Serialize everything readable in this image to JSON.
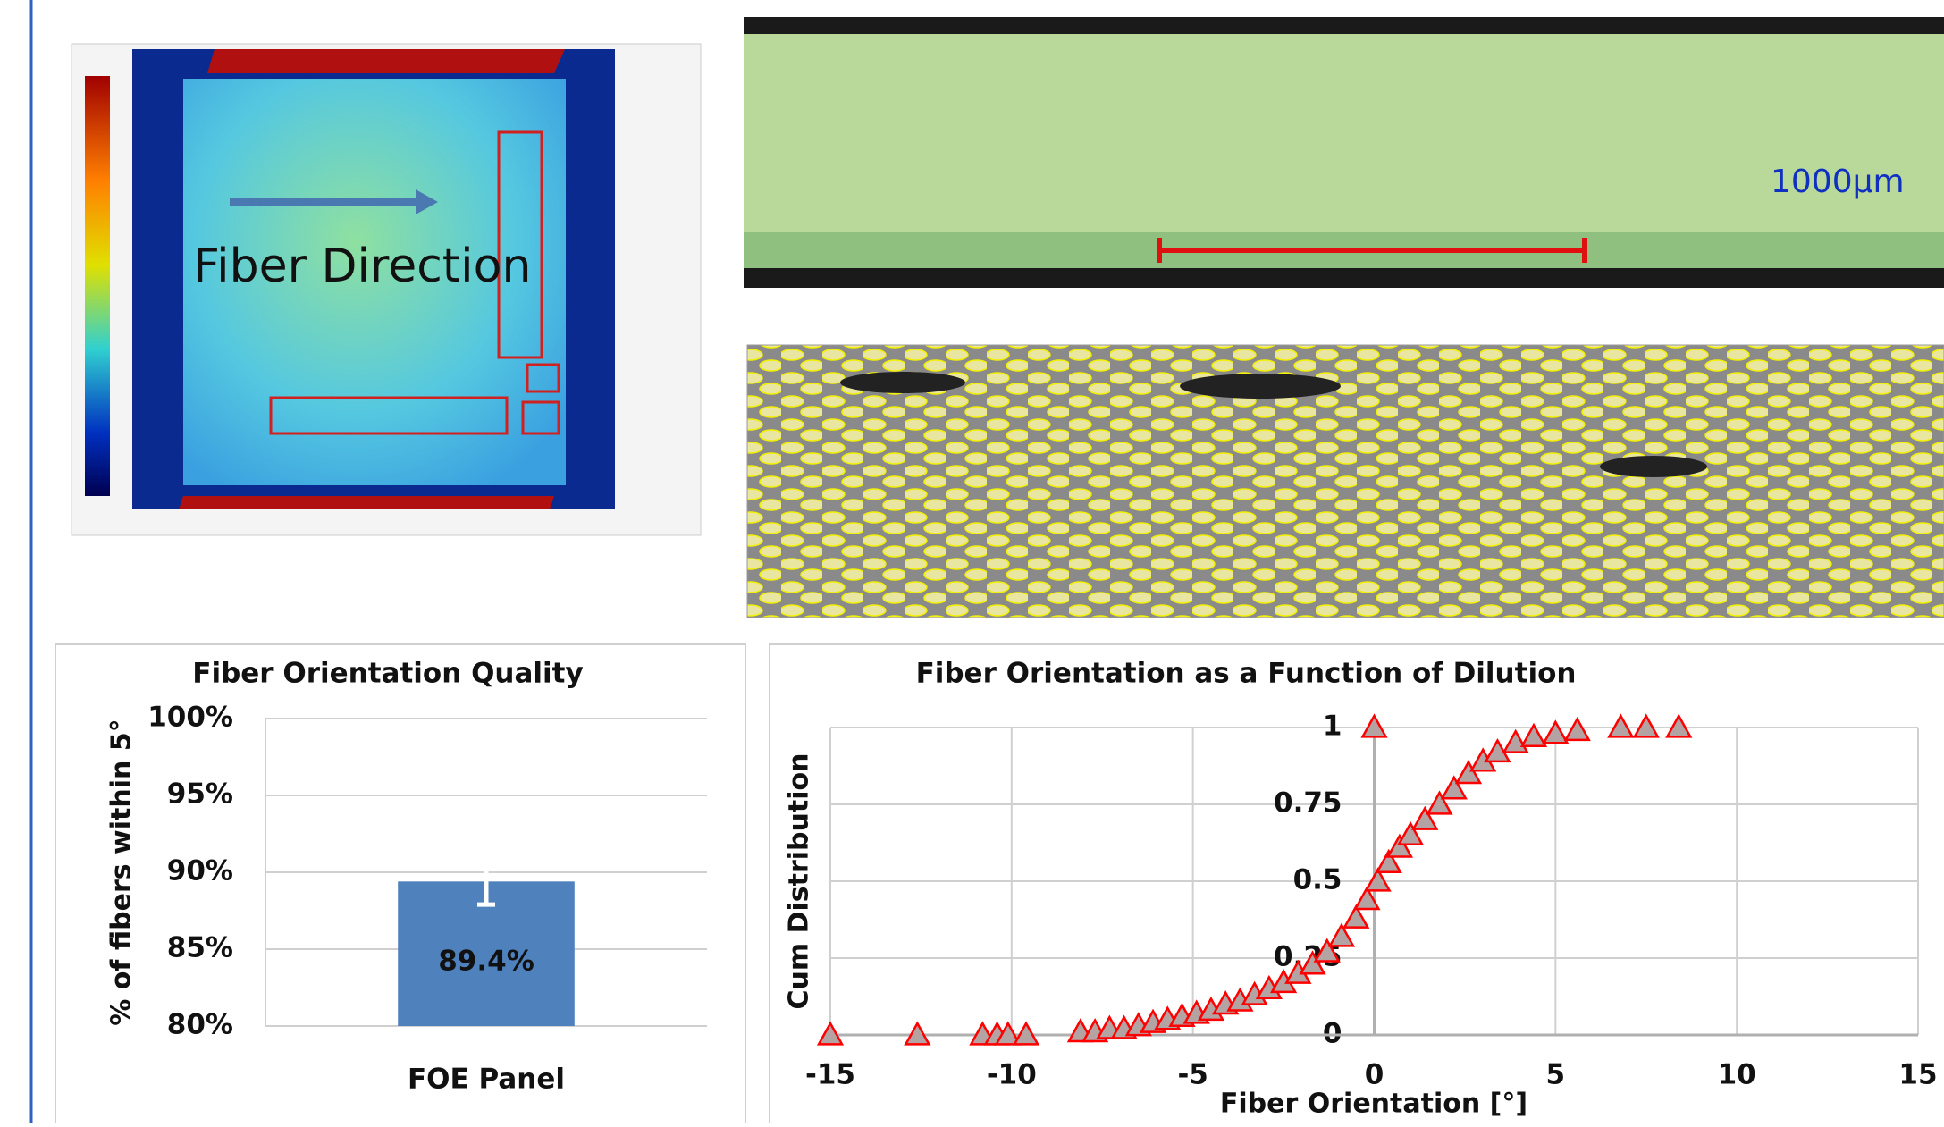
{
  "figure": {
    "cscan_label": "Fiber Direction",
    "scale_bar_label": "1000µm"
  },
  "chart_data": [
    {
      "type": "bar",
      "title": "Fiber Orientation Quality",
      "ylabel": "% of fibers within 5°",
      "categories": [
        "FOE Panel"
      ],
      "values": [
        89.4
      ],
      "value_labels": [
        "89.4%"
      ],
      "errors": [
        1.5
      ],
      "color": "#4f81bd",
      "error_color": "#ffffff",
      "grid": true,
      "ylim": [
        80,
        100
      ],
      "yticks": [
        {
          "value": 80,
          "label": "80%"
        },
        {
          "value": 85,
          "label": "85%"
        },
        {
          "value": 90,
          "label": "90%"
        },
        {
          "value": 95,
          "label": "95%"
        },
        {
          "value": 100,
          "label": "100%"
        }
      ]
    },
    {
      "type": "scatter",
      "title": "Fiber Orientation as a Function of Dilution",
      "xlabel": "Fiber Orientation [°]",
      "ylabel": "Cum Distribution",
      "marker_color": "#ff0000",
      "marker_fill": "#b3a3a3",
      "grid": true,
      "x": [
        -15,
        -12.6,
        -10.8,
        -10.4,
        -10.1,
        -9.6,
        -8.1,
        -7.7,
        -7.3,
        -6.9,
        -6.5,
        -6.1,
        -5.7,
        -5.3,
        -4.9,
        -4.5,
        -4.1,
        -3.7,
        -3.3,
        -2.9,
        -2.5,
        -2.1,
        -1.7,
        -1.3,
        -0.9,
        -0.5,
        -0.2,
        0.1,
        0.4,
        0.7,
        1.0,
        1.4,
        1.8,
        2.2,
        2.6,
        3.0,
        3.4,
        3.9,
        4.4,
        5.0,
        5.6,
        0,
        6.8,
        7.5,
        8.4
      ],
      "values": [
        0,
        0,
        0,
        0,
        0,
        0,
        0.01,
        0.01,
        0.02,
        0.02,
        0.03,
        0.04,
        0.05,
        0.06,
        0.07,
        0.08,
        0.1,
        0.11,
        0.13,
        0.15,
        0.17,
        0.2,
        0.23,
        0.27,
        0.32,
        0.38,
        0.44,
        0.5,
        0.56,
        0.61,
        0.65,
        0.7,
        0.75,
        0.8,
        0.85,
        0.89,
        0.92,
        0.95,
        0.97,
        0.98,
        0.99,
        1,
        1,
        1,
        1
      ],
      "xlim": [
        -15,
        15
      ],
      "xticks": [
        -15,
        -10,
        -5,
        0,
        5,
        10,
        15
      ],
      "ylim": [
        0,
        1
      ],
      "yticks": [
        0,
        0.25,
        0.5,
        0.75,
        1
      ]
    }
  ]
}
